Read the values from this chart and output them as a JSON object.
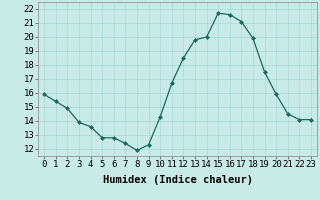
{
  "x": [
    0,
    1,
    2,
    3,
    4,
    5,
    6,
    7,
    8,
    9,
    10,
    11,
    12,
    13,
    14,
    15,
    16,
    17,
    18,
    19,
    20,
    21,
    22,
    23
  ],
  "y": [
    15.9,
    15.4,
    14.9,
    13.9,
    13.6,
    12.8,
    12.8,
    12.4,
    11.9,
    12.3,
    14.3,
    16.7,
    18.5,
    19.8,
    20.0,
    21.7,
    21.6,
    21.1,
    19.9,
    17.5,
    15.9,
    14.5,
    14.1,
    14.1
  ],
  "line_color": "#1a6b5a",
  "marker": "D",
  "marker_size": 2.0,
  "bg_color": "#c8ebe8",
  "grid_color": "#a8d8d4",
  "tick_color": "#555555",
  "xlabel": "Humidex (Indice chaleur)",
  "ylabel_ticks": [
    12,
    13,
    14,
    15,
    16,
    17,
    18,
    19,
    20,
    21,
    22
  ],
  "xlim": [
    -0.5,
    23.5
  ],
  "ylim": [
    11.5,
    22.5
  ],
  "xlabel_fontsize": 7.5,
  "tick_fontsize": 6.5
}
